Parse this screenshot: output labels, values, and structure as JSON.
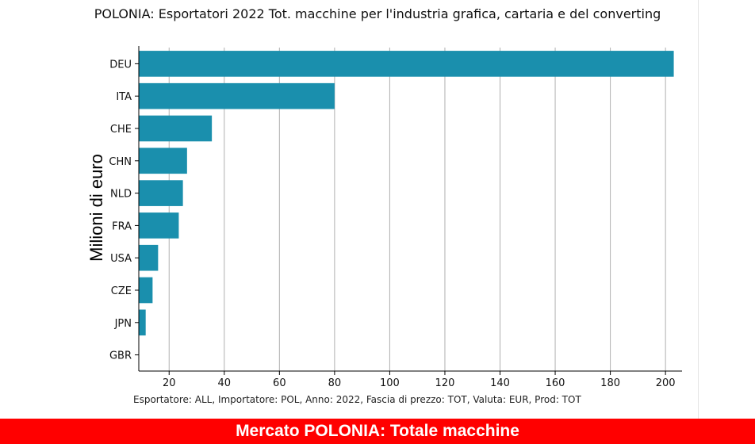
{
  "chart_data": {
    "type": "bar",
    "orientation": "horizontal",
    "title": "POLONIA: Esportatori 2022 Tot. macchine per l'industria grafica, cartaria e del converting",
    "ylabel": "Milioni di euro",
    "xlabel": "",
    "categories": [
      "DEU",
      "ITA",
      "CHE",
      "CHN",
      "NLD",
      "FRA",
      "USA",
      "CZE",
      "JPN",
      "GBR"
    ],
    "values": [
      203,
      80,
      35.5,
      26.5,
      25,
      23.5,
      16,
      14,
      11.5,
      9
    ],
    "xlim": [
      9,
      206
    ],
    "xticks": [
      20,
      40,
      60,
      80,
      100,
      120,
      140,
      160,
      180,
      200
    ],
    "grid": "vertical",
    "bar_color": "#1a8fad"
  },
  "footnote": "Esportatore: ALL, Importatore: POL, Anno: 2022, Fascia di prezzo: TOT, Valuta: EUR, Prod: TOT",
  "banner": "Mercato POLONIA: Totale macchine",
  "colors": {
    "banner": "#ff0000",
    "bar": "#1a8fad",
    "grid": "#b0b0b0"
  }
}
